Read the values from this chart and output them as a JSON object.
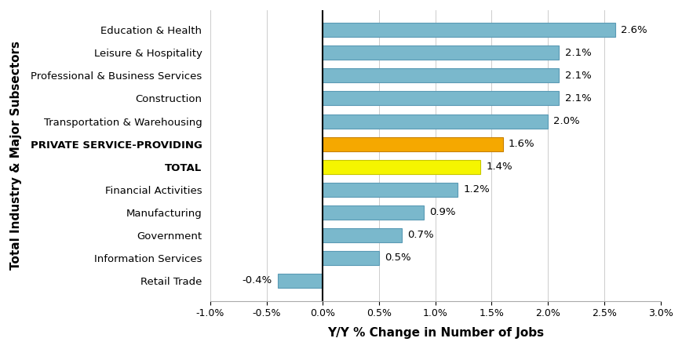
{
  "categories": [
    "Education & Health",
    "Leisure & Hospitality",
    "Professional & Business Services",
    "Construction",
    "Transportation & Warehousing",
    "PRIVATE SERVICE-PROVIDING",
    "TOTAL",
    "Financial Activities",
    "Manufacturing",
    "Government",
    "Information Services",
    "Retail Trade"
  ],
  "values": [
    2.6,
    2.1,
    2.1,
    2.1,
    2.0,
    1.6,
    1.4,
    1.2,
    0.9,
    0.7,
    0.5,
    -0.4
  ],
  "bar_colors": [
    "#7ab8cc",
    "#7ab8cc",
    "#7ab8cc",
    "#7ab8cc",
    "#7ab8cc",
    "#f5a800",
    "#f5f500",
    "#7ab8cc",
    "#7ab8cc",
    "#7ab8cc",
    "#7ab8cc",
    "#7ab8cc"
  ],
  "bar_edge_colors": [
    "#5a9ab5",
    "#5a9ab5",
    "#5a9ab5",
    "#5a9ab5",
    "#5a9ab5",
    "#c88000",
    "#c8c800",
    "#5a9ab5",
    "#5a9ab5",
    "#5a9ab5",
    "#5a9ab5",
    "#5a9ab5"
  ],
  "label_values": [
    "2.6%",
    "2.1%",
    "2.1%",
    "2.1%",
    "2.0%",
    "1.6%",
    "1.4%",
    "1.2%",
    "0.9%",
    "0.7%",
    "0.5%",
    "-0.4%"
  ],
  "xlabel": "Y/Y % Change in Number of Jobs",
  "ylabel": "Total Industry & Major Subsectors",
  "xlim": [
    -1.0,
    3.0
  ],
  "xtick_values": [
    -1.0,
    -0.5,
    0.0,
    0.5,
    1.0,
    1.5,
    2.0,
    2.5,
    3.0
  ],
  "xtick_labels": [
    "-1.0%",
    "-0.5%",
    "0.0%",
    "0.5%",
    "1.0%",
    "1.5%",
    "2.0%",
    "2.5%",
    "3.0%"
  ],
  "background_color": "#ffffff",
  "grid_color": "#cccccc",
  "bold_labels": [
    "PRIVATE SERVICE-PROVIDING",
    "TOTAL"
  ],
  "xlabel_fontsize": 11,
  "label_fontsize": 9.5,
  "tick_fontsize": 9.0,
  "bar_height": 0.62
}
